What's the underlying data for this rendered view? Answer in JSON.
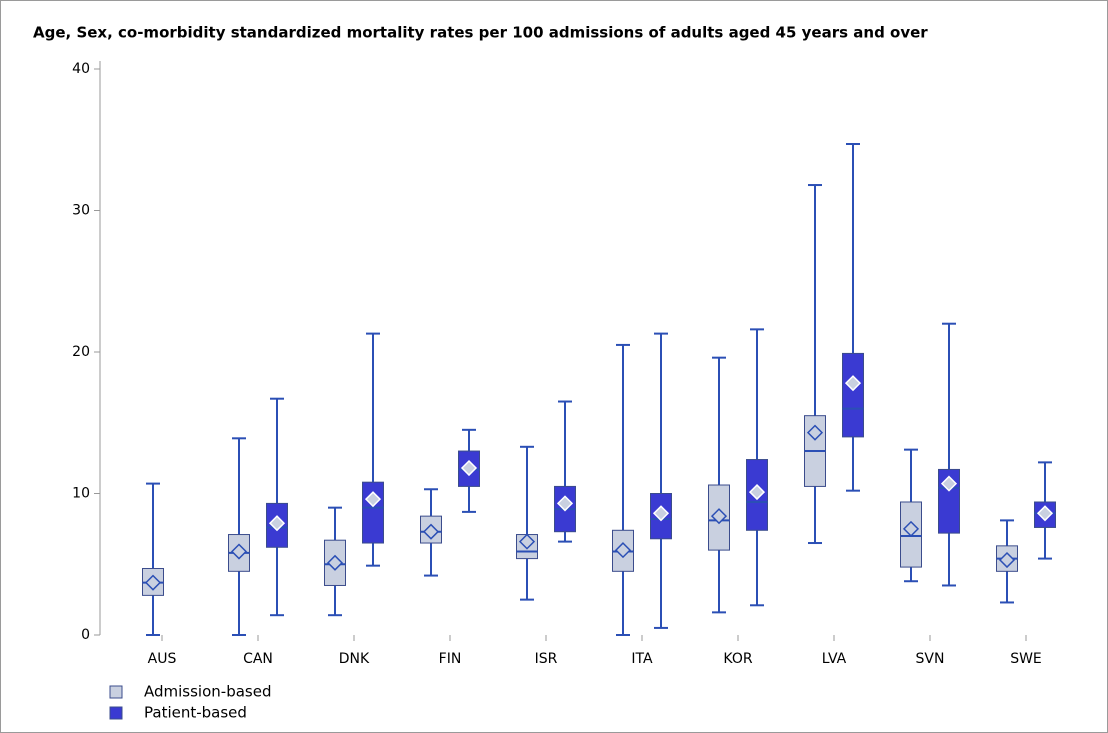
{
  "chart_data": {
    "type": "boxplot",
    "title": "Age, Sex, co-morbidity standardized mortality rates per 100 admissions of adults aged 45 years and over",
    "categories": [
      "AUS",
      "CAN",
      "DNK",
      "FIN",
      "ISR",
      "ITA",
      "KOR",
      "LVA",
      "SVN",
      "SWE"
    ],
    "ylim": [
      0,
      40
    ],
    "yticks": [
      0,
      10,
      20,
      30,
      40
    ],
    "grid": false,
    "legend": "bottom-left",
    "series": [
      {
        "name": "Admission-based",
        "color": "#c9d0e0",
        "min": [
          0,
          0,
          1.4,
          4.2,
          2.5,
          0,
          1.6,
          6.5,
          3.8,
          2.3
        ],
        "q1": [
          2.8,
          4.5,
          3.5,
          6.5,
          5.4,
          4.5,
          6.0,
          10.5,
          4.8,
          4.5
        ],
        "median": [
          3.7,
          5.8,
          5.0,
          7.3,
          5.9,
          5.9,
          8.1,
          13.0,
          7.0,
          5.4
        ],
        "q3": [
          4.7,
          7.1,
          6.7,
          8.4,
          7.1,
          7.4,
          10.6,
          15.5,
          9.4,
          6.3
        ],
        "max": [
          10.7,
          13.9,
          9.0,
          10.3,
          13.3,
          20.5,
          19.6,
          31.8,
          13.1,
          8.1
        ],
        "mean": [
          3.7,
          5.9,
          5.1,
          7.3,
          6.6,
          6.0,
          8.4,
          14.3,
          7.5,
          5.3
        ]
      },
      {
        "name": "Patient-based",
        "color": "#3a3ad2",
        "min": [
          null,
          1.4,
          4.9,
          8.7,
          6.6,
          0.5,
          2.1,
          10.2,
          3.5,
          5.4
        ],
        "q1": [
          null,
          6.2,
          6.5,
          10.5,
          7.3,
          6.8,
          7.4,
          14.0,
          7.2,
          7.6
        ],
        "median": [
          null,
          7.6,
          9.0,
          11.7,
          8.9,
          8.2,
          9.4,
          16.0,
          10.4,
          8.6
        ],
        "q3": [
          null,
          9.3,
          10.8,
          13.0,
          10.5,
          10.0,
          12.4,
          19.9,
          11.7,
          9.4
        ],
        "max": [
          null,
          16.7,
          21.3,
          14.5,
          16.5,
          21.3,
          21.6,
          34.7,
          22.0,
          12.2
        ],
        "mean": [
          null,
          7.9,
          9.6,
          11.8,
          9.3,
          8.6,
          10.1,
          17.8,
          10.7,
          8.6
        ]
      }
    ]
  }
}
